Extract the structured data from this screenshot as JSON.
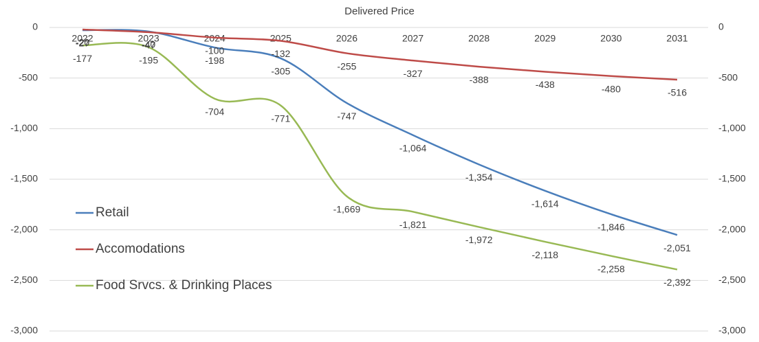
{
  "chart_data": {
    "type": "line",
    "title": "Delivered Price",
    "smooth": true,
    "grid": true,
    "legend": "left",
    "categories": [
      "2022",
      "2023",
      "2024",
      "2025",
      "2026",
      "2027",
      "2028",
      "2029",
      "2030",
      "2031"
    ],
    "series": [
      {
        "name": "Retail",
        "color": "#4a7ebb",
        "values": [
          -27,
          -40,
          -198,
          -305,
          -747,
          -1064,
          -1354,
          -1614,
          -1846,
          -2051
        ],
        "value_labels": [
          "-27",
          "-40",
          "-198",
          "-305",
          "-747",
          "-1,064",
          "-1,354",
          "-1,614",
          "-1,846",
          "-2,051"
        ]
      },
      {
        "name": "Accomodations",
        "color": "#be4b48",
        "values": [
          -20,
          -47,
          -100,
          -132,
          -255,
          -327,
          -388,
          -438,
          -480,
          -516
        ],
        "value_labels": [
          "-20",
          "-47",
          "-100",
          "-132",
          "-255",
          "-327",
          "-388",
          "-438",
          "-480",
          "-516"
        ]
      },
      {
        "name": "Food Srvcs. & Drinking Places",
        "color": "#98b954",
        "values": [
          -177,
          -195,
          -704,
          -771,
          -1669,
          -1821,
          -1972,
          -2118,
          -2258,
          -2392
        ],
        "value_labels": [
          "-177",
          "-195",
          "-704",
          "-771",
          "-1,669",
          "-1,821",
          "-1,972",
          "-2,118",
          "-2,258",
          "-2,392"
        ]
      }
    ],
    "ylim": [
      -3000,
      0
    ],
    "yticks": [
      {
        "value": -3000,
        "label": "-3,000"
      },
      {
        "value": -2500,
        "label": "-2,500"
      },
      {
        "value": -2000,
        "label": "-2,000"
      },
      {
        "value": -1500,
        "label": "-1,500"
      },
      {
        "value": -1000,
        "label": "-1,000"
      },
      -500,
      0
    ],
    "y2lim": [
      -3000,
      0
    ],
    "y2ticks": [
      {
        "value": -3000,
        "label": "-3,000"
      },
      {
        "value": -2500,
        "label": "-2,500"
      },
      {
        "value": -2000,
        "label": "-2,000"
      },
      {
        "value": -1500,
        "label": "-1,500"
      },
      {
        "value": -1000,
        "label": "-1,000"
      },
      -500,
      0
    ]
  }
}
